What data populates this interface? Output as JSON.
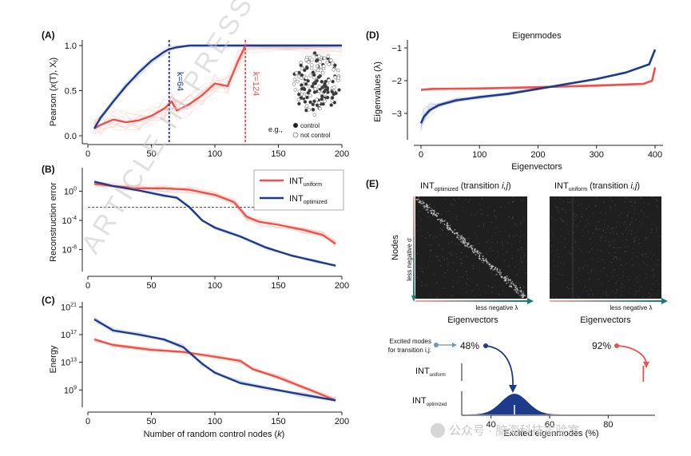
{
  "colors": {
    "red": "#f0504a",
    "blue": "#1e3a8a",
    "light_red": "#f7b6ad",
    "light_blue": "#b9c3e3",
    "dark_bg": "#1f1f1f",
    "arrow_teal": "#1f7a7a",
    "gray_text": "#444444"
  },
  "watermark": "ARTICLE IN PRESS",
  "footer_watermark": "公众号 · 脑海科技实验室",
  "chart_data": [
    {
      "id": "A",
      "type": "line",
      "panel_label": "(A)",
      "ylabel": "Pearson (x(T), Xf)",
      "ylabel_main": "Pearson (",
      "ylabel_mid": "x",
      "ylabel_paren": "(T), X",
      "ylabel_sub": "f",
      "ylabel_end": ")",
      "xlim": [
        0,
        200
      ],
      "ylim": [
        0,
        1.0
      ],
      "yticks": [
        0.0,
        0.5,
        1.0
      ],
      "ytick_labels": [
        "0.0",
        "0.5",
        "1.0"
      ],
      "xticks": [
        0,
        50,
        100,
        150,
        200
      ],
      "xtick_labels": [
        "0",
        "50",
        "100",
        "150",
        "200"
      ],
      "series": [
        {
          "name": "INT_uniform",
          "color": "red",
          "x": [
            5,
            10,
            20,
            30,
            40,
            50,
            60,
            66,
            70,
            80,
            90,
            100,
            110,
            118,
            124,
            200
          ],
          "y": [
            0.08,
            0.12,
            0.18,
            0.15,
            0.17,
            0.22,
            0.3,
            0.38,
            0.28,
            0.35,
            0.45,
            0.58,
            0.55,
            0.82,
            1.0,
            1.0
          ]
        },
        {
          "name": "INT_optimized",
          "color": "blue",
          "x": [
            5,
            10,
            20,
            30,
            40,
            50,
            60,
            64,
            70,
            80,
            200
          ],
          "y": [
            0.08,
            0.2,
            0.38,
            0.55,
            0.7,
            0.83,
            0.93,
            0.96,
            0.98,
            1.0,
            1.0
          ]
        }
      ],
      "vlines": [
        {
          "x": 64,
          "color": "blue",
          "label": "k=64"
        },
        {
          "x": 124,
          "color": "red",
          "label": "k=124"
        }
      ],
      "inset_legend": {
        "prefix": "e.g.,",
        "control": "control",
        "not_control": "not control"
      }
    },
    {
      "id": "B",
      "type": "line",
      "panel_label": "(B)",
      "ylabel": "Reconstruction error",
      "yscale": "log",
      "xlim": [
        0,
        200
      ],
      "ylim_log10": [
        -11,
        3
      ],
      "yticks_log10": [
        0,
        -4,
        -8
      ],
      "ytick_labels": [
        {
          "base": "10",
          "exp": "0"
        },
        {
          "base": "10",
          "exp": "-4"
        },
        {
          "base": "10",
          "exp": "-8"
        }
      ],
      "xticks": [
        0,
        50,
        100,
        150,
        200
      ],
      "xtick_labels": [
        "0",
        "50",
        "100",
        "150",
        "200"
      ],
      "threshold_log10": -2.2,
      "legend": [
        {
          "name": "INT_uniform",
          "label_main": "INT",
          "label_sub": "uniform",
          "color": "red"
        },
        {
          "name": "INT_optimized",
          "label_main": "INT",
          "label_sub": "optimized",
          "color": "blue"
        }
      ],
      "series": [
        {
          "name": "INT_uniform",
          "color": "red",
          "x": [
            5,
            20,
            40,
            60,
            80,
            100,
            115,
            125,
            135,
            150,
            170,
            185,
            195
          ],
          "y_log10": [
            1.0,
            0.7,
            0.4,
            0.4,
            0.2,
            -0.5,
            -1.5,
            -3.5,
            -4.2,
            -4.6,
            -5.3,
            -6.0,
            -7.2
          ]
        },
        {
          "name": "INT_optimized",
          "color": "blue",
          "x": [
            5,
            20,
            40,
            60,
            70,
            80,
            90,
            100,
            120,
            140,
            160,
            180,
            195
          ],
          "y_log10": [
            1.3,
            0.7,
            0.1,
            -0.6,
            -0.9,
            -2.2,
            -4.0,
            -5.0,
            -6.2,
            -7.7,
            -8.8,
            -9.6,
            -10.2
          ]
        }
      ]
    },
    {
      "id": "C",
      "type": "line",
      "panel_label": "(C)",
      "ylabel": "Energy",
      "yscale": "log",
      "xlabel": "Number of random control nodes (k)",
      "xlabel_main": "Number of random control nodes (",
      "xlabel_var": "k",
      "xlabel_end": ")",
      "xlim": [
        0,
        200
      ],
      "ylim_log10": [
        6.5,
        21.5
      ],
      "yticks_log10": [
        21,
        17,
        13,
        9
      ],
      "ytick_labels": [
        {
          "base": "10",
          "exp": "21"
        },
        {
          "base": "10",
          "exp": "17"
        },
        {
          "base": "10",
          "exp": "13"
        },
        {
          "base": "10",
          "exp": "9"
        }
      ],
      "xticks": [
        0,
        50,
        100,
        150,
        200
      ],
      "xtick_labels": [
        "0",
        "50",
        "100",
        "150",
        "200"
      ],
      "series": [
        {
          "name": "INT_uniform",
          "color": "red",
          "x": [
            5,
            20,
            50,
            75,
            100,
            120,
            130,
            150,
            175,
            195
          ],
          "y_log10": [
            16.3,
            15.5,
            14.8,
            14.5,
            13.8,
            13.2,
            12.0,
            10.8,
            9.0,
            7.5
          ]
        },
        {
          "name": "INT_optimized",
          "color": "blue",
          "x": [
            5,
            20,
            40,
            60,
            75,
            90,
            100,
            120,
            140,
            170,
            195
          ],
          "y_log10": [
            19.2,
            17.6,
            17.0,
            16.3,
            15.2,
            12.8,
            11.5,
            10.0,
            9.3,
            8.3,
            7.5
          ]
        }
      ]
    },
    {
      "id": "D",
      "type": "line",
      "panel_label": "(D)",
      "title": "Eigenmodes",
      "ylabel": "Eigenvalues (λ)",
      "xlabel": "Eigenvectors",
      "xlim": [
        -10,
        410
      ],
      "ylim": [
        -3.6,
        -0.7
      ],
      "yticks": [
        -1,
        -2,
        -3
      ],
      "ytick_labels": [
        "−1",
        "−2",
        "−3"
      ],
      "xticks": [
        0,
        100,
        200,
        300,
        400
      ],
      "xtick_labels": [
        "0",
        "100",
        "200",
        "300",
        "400"
      ],
      "series": [
        {
          "name": "INT_uniform",
          "color": "red",
          "x": [
            0,
            20,
            100,
            200,
            300,
            380,
            395,
            400
          ],
          "y": [
            -2.28,
            -2.25,
            -2.24,
            -2.2,
            -2.15,
            -2.1,
            -2.0,
            -1.6
          ]
        },
        {
          "name": "INT_optimized",
          "color": "blue",
          "x": [
            0,
            5,
            15,
            30,
            60,
            100,
            150,
            200,
            250,
            300,
            350,
            390,
            400
          ],
          "y": [
            -3.3,
            -3.1,
            -2.9,
            -2.75,
            -2.6,
            -2.5,
            -2.4,
            -2.25,
            -2.1,
            -1.95,
            -1.75,
            -1.5,
            -1.05
          ]
        }
      ]
    },
    {
      "id": "E",
      "type": "heatmap",
      "panel_label": "(E)",
      "matrices": [
        {
          "title_main": "INT",
          "title_sub": "optimized",
          "title_rest": "(transition ",
          "title_vars": "i,j",
          "title_end": ")",
          "pattern": "diagonal"
        },
        {
          "title_main": "INT",
          "title_sub": "uniform",
          "title_rest": "(transition ",
          "title_vars": "i,j",
          "title_end": ")",
          "pattern": "noise"
        }
      ],
      "ylabel": "Nodes",
      "y_axis_arrow_label": "less negative σ",
      "x_axis_arrow_label": "less negative λ",
      "xlabel": "Eigenvectors",
      "excited": {
        "prompt_line1": "Excited modes",
        "prompt_line2": "for transition i,j:",
        "optimized_value": "48%",
        "uniform_value": "92%",
        "row_uniform_main": "INT",
        "row_uniform_sub": "uniform",
        "row_optimized_main": "INT",
        "row_optimized_sub": "optimized",
        "xlabel": "Excited eigenmodes (%)",
        "xticks": [
          40,
          60,
          80
        ],
        "xtick_labels": [
          "40",
          "60",
          "80"
        ],
        "xlim": [
          30,
          96
        ],
        "distribution_mean": 48,
        "distribution_sd": 4.5,
        "uniform_marker": 92
      }
    }
  ]
}
